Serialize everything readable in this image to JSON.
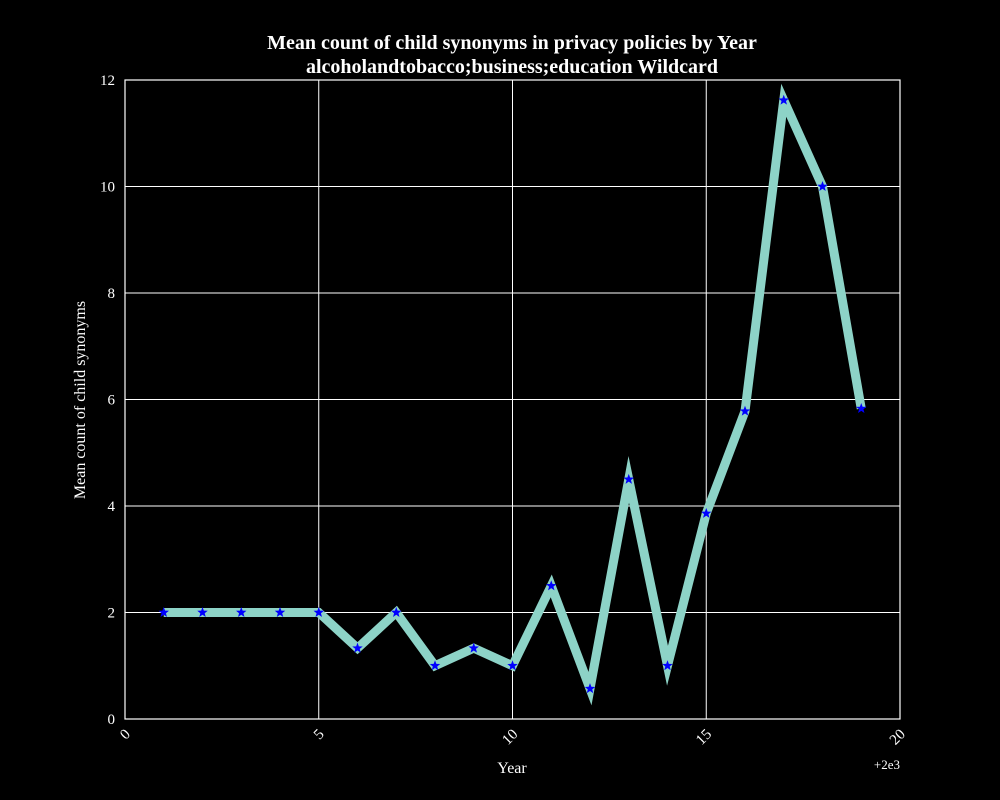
{
  "chart_data": {
    "type": "line",
    "title": "Mean count of child synonyms in privacy policies by Year",
    "subtitle": "alcoholandtobacco;business;education Wildcard",
    "xlabel": "Year",
    "ylabel": "Mean count of child synonyms",
    "x_offset_label": "+2e3",
    "xlim": [
      0,
      20
    ],
    "ylim": [
      0,
      12
    ],
    "xticks": [
      "0",
      "5",
      "10",
      "15",
      "20"
    ],
    "yticks": [
      "0",
      "2",
      "4",
      "6",
      "8",
      "10",
      "12"
    ],
    "grid": true,
    "x": [
      1,
      2,
      3,
      4,
      5,
      6,
      7,
      8,
      9,
      10,
      11,
      12,
      13,
      14,
      15,
      16,
      17,
      18,
      19
    ],
    "series": [
      {
        "values": [
          2.0,
          2.0,
          2.0,
          2.0,
          2.0,
          1.33,
          2.0,
          1.0,
          1.33,
          1.0,
          2.5,
          0.57,
          4.5,
          1.0,
          3.86,
          5.78,
          11.62,
          10.0,
          5.83
        ],
        "line_color": "#8dd3c7",
        "marker_color": "#0000ff",
        "marker": "star"
      }
    ],
    "colors": {
      "background": "#000000",
      "foreground": "#ffffff",
      "grid": "#ffffff"
    }
  }
}
